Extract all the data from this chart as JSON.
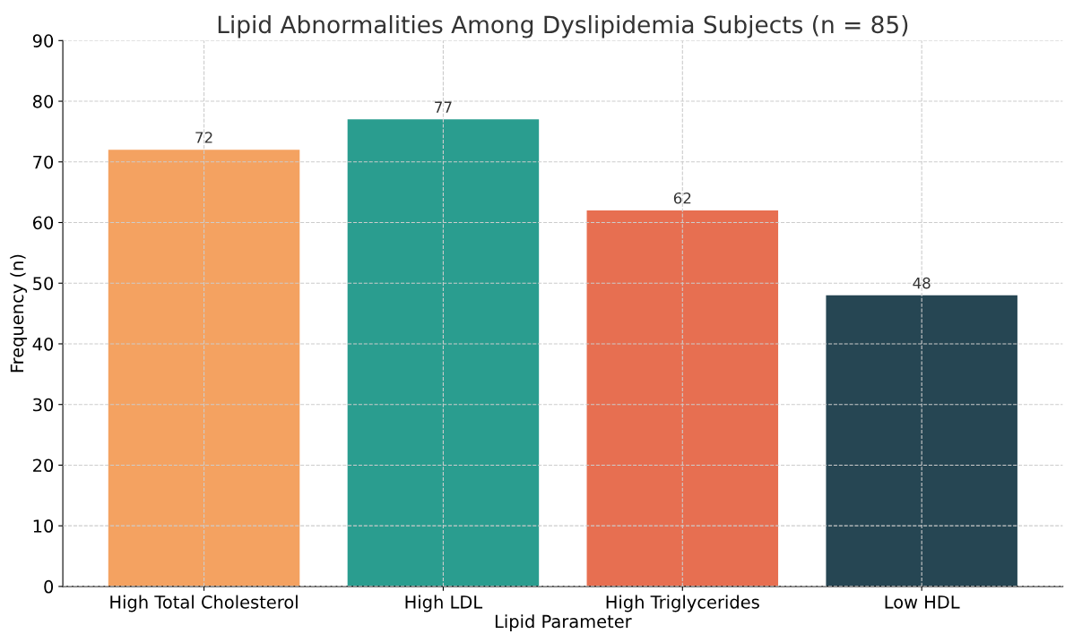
{
  "chart_data": {
    "type": "bar",
    "title": "Lipid Abnormalities Among Dyslipidemia Subjects (n = 85)",
    "xlabel": "Lipid Parameter",
    "ylabel": "Frequency (n)",
    "categories": [
      "High Total Cholesterol",
      "High LDL",
      "High Triglycerides",
      "Low HDL"
    ],
    "values": [
      72,
      77,
      62,
      48
    ],
    "colors": [
      "#f4a261",
      "#2a9d8f",
      "#e76f51",
      "#264653"
    ],
    "ylim": [
      0,
      90
    ],
    "yticks": [
      0,
      10,
      20,
      30,
      40,
      50,
      60,
      70,
      80,
      90
    ],
    "grid": true,
    "data_labels": true
  }
}
